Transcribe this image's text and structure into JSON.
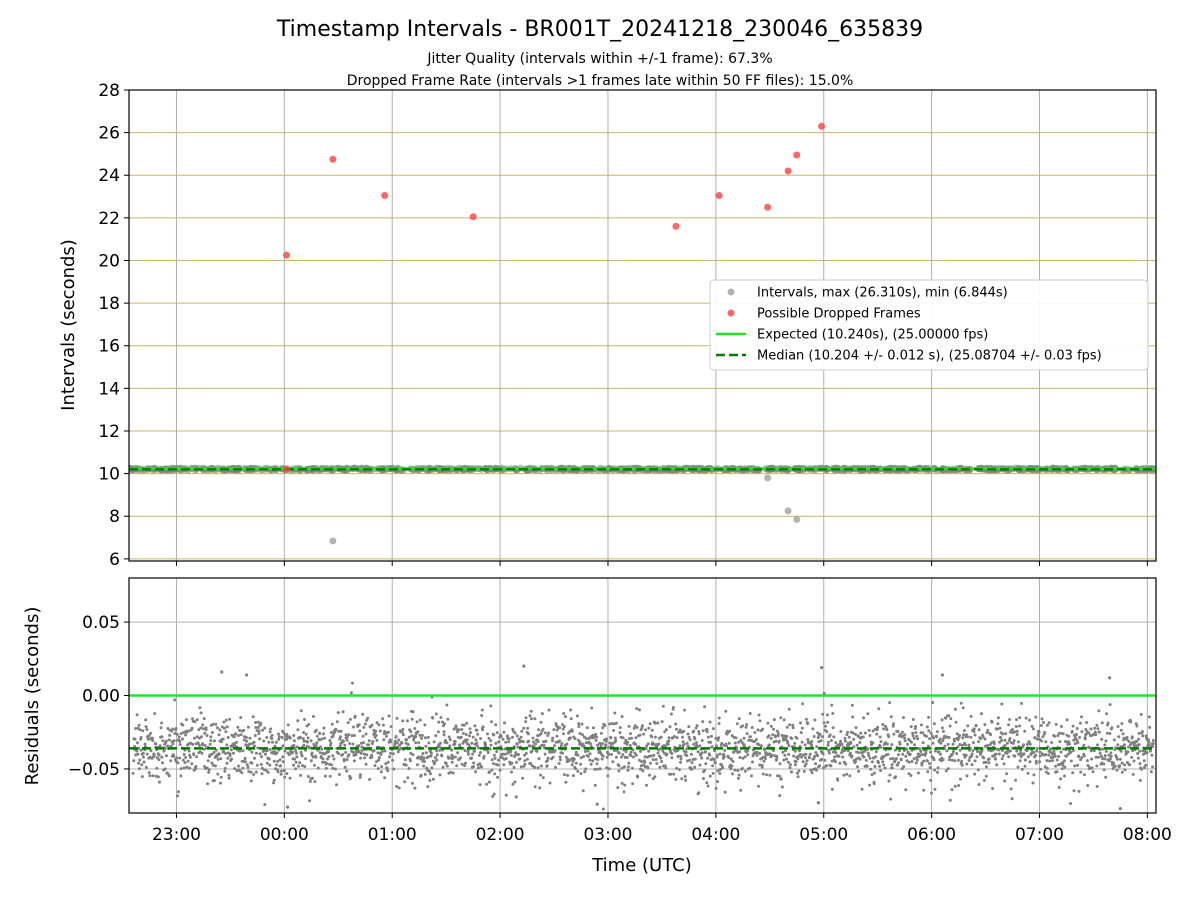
{
  "figure": {
    "title": "Timestamp Intervals - BR001T_20241218_230046_635839",
    "subtitle1": "Jitter Quality (intervals within +/-1 frame): 67.3%",
    "subtitle2": "Dropped Frame Rate (intervals >1 frames late within 50 FF files): 15.0%"
  },
  "colors": {
    "intervals": "#808080",
    "dropped": "#ff4040",
    "expected": "#1ee81e",
    "median": "#007a00",
    "hgrid_top": "#c8b46e",
    "grid": "#b0b0b0"
  },
  "chart_data": [
    {
      "type": "scatter",
      "ylabel": "Intervals (seconds)",
      "ylim": [
        5.9,
        28
      ],
      "yticks": [
        6,
        8,
        10,
        12,
        14,
        16,
        18,
        20,
        22,
        24,
        26,
        28
      ],
      "xlim_hours": [
        -1.44,
        8.08
      ],
      "x_tick_hours": [
        -1,
        0,
        1,
        2,
        3,
        4,
        5,
        6,
        7,
        8
      ],
      "x_tick_labels": [
        "23:00",
        "00:00",
        "01:00",
        "02:00",
        "03:00",
        "04:00",
        "05:00",
        "06:00",
        "07:00",
        "08:00"
      ],
      "grid": true,
      "legend_position": "center-right",
      "legend": [
        "Intervals, max (26.310s), min (6.844s)",
        "Possible Dropped Frames",
        "Expected (10.240s), (25.00000 fps)",
        "Median (10.204 +/- 0.012 s), (25.08704 +/- 0.03 fps)"
      ],
      "expected": 10.24,
      "median": 10.204,
      "typical_band": [
        10.16,
        10.26
      ],
      "outliers_low": [
        {
          "t": 0.45,
          "y": 6.84
        },
        {
          "t": 4.48,
          "y": 9.8
        },
        {
          "t": 4.67,
          "y": 8.25
        },
        {
          "t": 4.75,
          "y": 7.85
        }
      ],
      "dropped_frames": [
        {
          "t": 0.02,
          "y": 20.25
        },
        {
          "t": 0.02,
          "y": 10.2
        },
        {
          "t": 0.45,
          "y": 24.75
        },
        {
          "t": 0.93,
          "y": 23.05
        },
        {
          "t": 1.75,
          "y": 22.05
        },
        {
          "t": 3.63,
          "y": 21.6
        },
        {
          "t": 4.03,
          "y": 23.05
        },
        {
          "t": 4.48,
          "y": 22.5
        },
        {
          "t": 4.67,
          "y": 24.2
        },
        {
          "t": 4.75,
          "y": 24.95
        },
        {
          "t": 4.98,
          "y": 26.3
        }
      ]
    },
    {
      "type": "scatter",
      "xlabel": "Time (UTC)",
      "ylabel": "Residuals (seconds)",
      "ylim": [
        -0.08,
        0.08
      ],
      "yticks": [
        0.05,
        0.0,
        -0.05
      ],
      "ytick_labels": [
        "0.05",
        "0.00",
        "−0.05"
      ],
      "xlim_hours": [
        -1.44,
        8.08
      ],
      "x_tick_hours": [
        -1,
        0,
        1,
        2,
        3,
        4,
        5,
        6,
        7,
        8
      ],
      "x_tick_labels": [
        "23:00",
        "00:00",
        "01:00",
        "02:00",
        "03:00",
        "04:00",
        "05:00",
        "06:00",
        "07:00",
        "08:00"
      ],
      "grid": true,
      "expected_residual": 0.0,
      "median_residual": -0.036,
      "residual_center": -0.036,
      "residual_spread": 0.011,
      "n_points": 2800,
      "sample_extremes": [
        {
          "t": -0.58,
          "y": 0.016
        },
        {
          "t": -0.35,
          "y": 0.014
        },
        {
          "t": 2.22,
          "y": 0.02
        },
        {
          "t": 4.98,
          "y": 0.019
        },
        {
          "t": 6.1,
          "y": 0.014
        },
        {
          "t": 7.65,
          "y": 0.012
        },
        {
          "t": 0.03,
          "y": -0.076
        },
        {
          "t": 2.15,
          "y": -0.069
        },
        {
          "t": 2.9,
          "y": -0.074
        },
        {
          "t": 4.95,
          "y": -0.073
        },
        {
          "t": 7.75,
          "y": -0.077
        }
      ]
    }
  ]
}
